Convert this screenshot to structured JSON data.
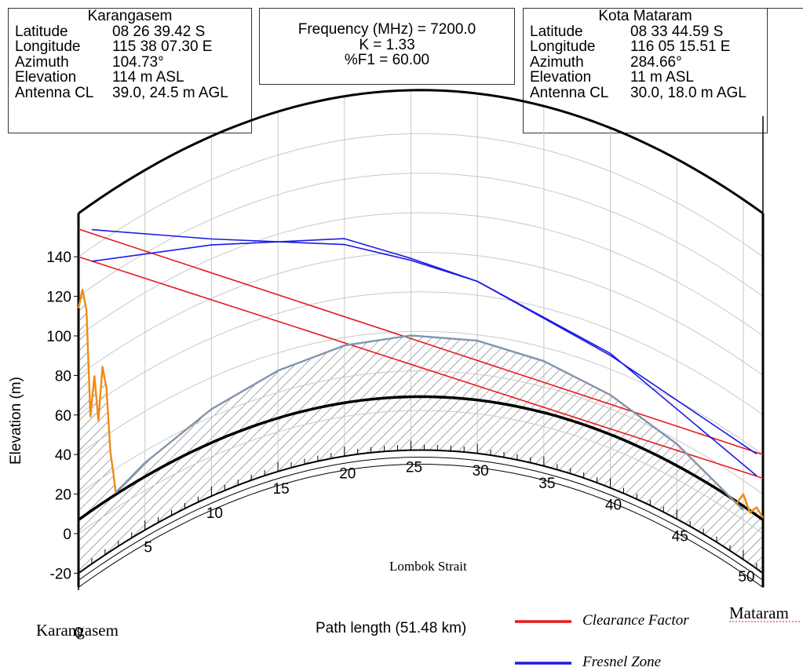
{
  "site_a": {
    "name": "Karangasem",
    "rows": [
      {
        "k": "Latitude",
        "v": "08 26 39.42 S"
      },
      {
        "k": "Longitude",
        "v": "115 38 07.30 E"
      },
      {
        "k": "Azimuth",
        "v": "104.73°"
      },
      {
        "k": "Elevation",
        "v": "114 m ASL"
      },
      {
        "k": "Antenna CL",
        "v": "39.0, 24.5 m AGL"
      }
    ]
  },
  "link": {
    "frequency": "Frequency (MHz) = 7200.0",
    "k_factor": "K = 1.33",
    "f1": "%F1 = 60.00"
  },
  "site_b": {
    "name": "Kota Mataram",
    "rows": [
      {
        "k": "Latitude",
        "v": "08 33 44.59 S"
      },
      {
        "k": "Longitude",
        "v": "116 05 15.51 E"
      },
      {
        "k": "Azimuth",
        "v": "284.66°"
      },
      {
        "k": "Elevation",
        "v": "11 m ASL"
      },
      {
        "k": "Antenna CL",
        "v": "30.0, 18.0 m AGL"
      }
    ]
  },
  "annotations": {
    "start_site": "Karangasem",
    "end_site": "Mataram",
    "strait": "Lombok Strait"
  },
  "legend": [
    {
      "label": "Clearance Factor",
      "color": "#e8191e"
    },
    {
      "label": "Fresnel Zone",
      "color": "#1a1ae6"
    }
  ],
  "chart_data": {
    "type": "line",
    "xlabel": "Path length (51.48 km)",
    "ylabel": "Elevation (m)",
    "xlim": [
      0,
      51.48
    ],
    "ylim": [
      -20,
      150
    ],
    "x_ticks": [
      0,
      5,
      10,
      15,
      20,
      25,
      30,
      35,
      40,
      45,
      50
    ],
    "y_ticks": [
      -20,
      0,
      20,
      40,
      60,
      80,
      100,
      120,
      140
    ],
    "earth_curvature": true,
    "grid": true,
    "series": [
      {
        "name": "Clearance Factor",
        "color": "#e8191e",
        "x": [
          0,
          51.48
        ],
        "y": [
          154,
          40
        ]
      },
      {
        "name": "Clearance Factor",
        "color": "#e8191e",
        "x": [
          0,
          51.48
        ],
        "y": [
          140,
          28
        ]
      },
      {
        "name": "Fresnel Zone",
        "color": "#1a1ae6",
        "x": [
          1,
          10,
          20,
          25,
          30,
          40,
          51
        ],
        "y": [
          149,
          110,
          87,
          76,
          67,
          47,
          38
        ]
      },
      {
        "name": "Fresnel Zone",
        "color": "#1a1ae6",
        "x": [
          1,
          10,
          20,
          25,
          30,
          40,
          51
        ],
        "y": [
          133,
          107,
          90,
          77,
          67,
          48,
          27
        ]
      },
      {
        "x": [
          0,
          0.3,
          0.6,
          0.9,
          1.2,
          1.5,
          1.8,
          2.1,
          2.4,
          2.6,
          2.8
        ],
        "y": [
          114,
          122,
          110,
          55,
          74,
          50,
          76,
          64,
          30,
          20,
          8
        ]
      },
      {
        "x": [
          2.8,
          5,
          10,
          15,
          20,
          25,
          30,
          35,
          40,
          45,
          50
        ],
        "y": [
          8,
          14,
          24,
          31,
          36,
          38,
          37,
          33,
          27,
          18,
          5
        ]
      },
      {
        "x": [
          49.5,
          50,
          50.5,
          51,
          51.48
        ],
        "y": [
          6,
          13,
          6,
          11,
          8
        ]
      }
    ]
  }
}
